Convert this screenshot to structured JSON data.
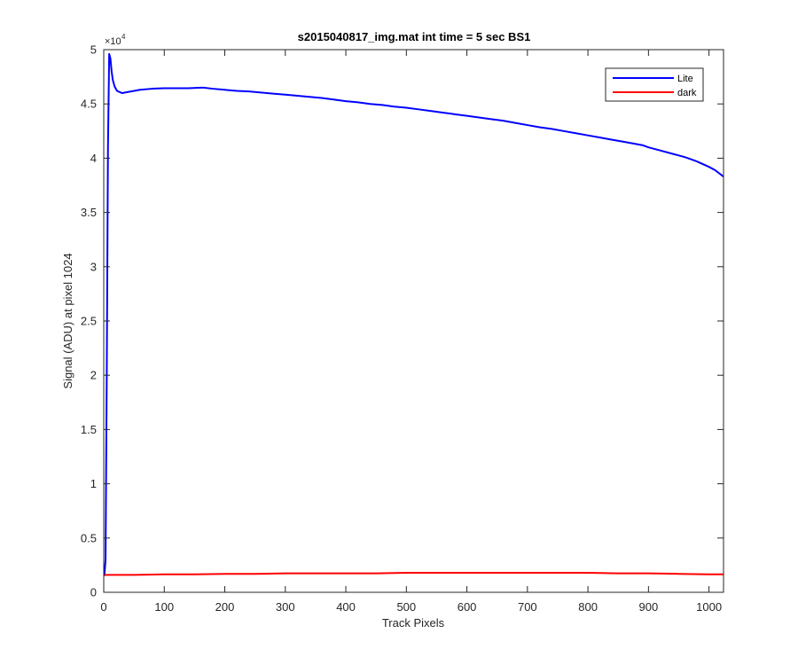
{
  "chart_data": {
    "type": "line",
    "title": "s2015040817_img.mat int time = 5 sec   BS1",
    "xlabel": "Track Pixels",
    "ylabel": "Signal (ADU) at pixel 1024",
    "xlim": [
      0,
      1024
    ],
    "ylim": [
      0,
      50000
    ],
    "y_exponent_base": "×10",
    "y_exponent_power": "4",
    "xticks": [
      0,
      100,
      200,
      300,
      400,
      500,
      600,
      700,
      800,
      900,
      1000
    ],
    "xtick_labels": [
      "0",
      "100",
      "200",
      "300",
      "400",
      "500",
      "600",
      "700",
      "800",
      "900",
      "1000"
    ],
    "yticks": [
      0,
      5000,
      10000,
      15000,
      20000,
      25000,
      30000,
      35000,
      40000,
      45000,
      50000
    ],
    "ytick_labels": [
      "0",
      "0.5",
      "1",
      "1.5",
      "2",
      "2.5",
      "3",
      "3.5",
      "4",
      "4.5",
      "5"
    ],
    "legend_position": "top-right",
    "grid": false,
    "series": [
      {
        "name": "Lite",
        "color": "#0000ff",
        "x": [
          1,
          3,
          5,
          7,
          9,
          11,
          13,
          15,
          18,
          22,
          30,
          40,
          60,
          80,
          100,
          120,
          140,
          160,
          165,
          180,
          200,
          220,
          240,
          260,
          280,
          300,
          320,
          340,
          360,
          380,
          400,
          420,
          440,
          460,
          480,
          500,
          520,
          540,
          560,
          580,
          600,
          620,
          640,
          660,
          680,
          700,
          720,
          740,
          760,
          780,
          800,
          820,
          840,
          860,
          880,
          890,
          900,
          920,
          940,
          960,
          970,
          980,
          1000,
          1010,
          1024
        ],
        "y": [
          1500,
          3000,
          20000,
          41000,
          49600,
          49200,
          48000,
          47200,
          46600,
          46200,
          46000,
          46100,
          46300,
          46400,
          46450,
          46450,
          46450,
          46500,
          46500,
          46400,
          46300,
          46200,
          46150,
          46050,
          45950,
          45850,
          45750,
          45650,
          45550,
          45400,
          45250,
          45150,
          45000,
          44900,
          44750,
          44650,
          44500,
          44350,
          44200,
          44050,
          43900,
          43750,
          43600,
          43450,
          43250,
          43050,
          42850,
          42700,
          42500,
          42300,
          42100,
          41900,
          41700,
          41500,
          41300,
          41200,
          41000,
          40700,
          40400,
          40100,
          39900,
          39700,
          39200,
          38900,
          38300
        ]
      },
      {
        "name": "dark",
        "color": "#ff0000",
        "x": [
          1,
          50,
          100,
          150,
          200,
          250,
          300,
          350,
          400,
          450,
          500,
          550,
          600,
          650,
          700,
          750,
          800,
          850,
          900,
          950,
          1000,
          1024
        ],
        "y": [
          1600,
          1600,
          1650,
          1650,
          1700,
          1700,
          1750,
          1750,
          1750,
          1750,
          1800,
          1800,
          1800,
          1800,
          1800,
          1800,
          1800,
          1750,
          1750,
          1700,
          1650,
          1650
        ]
      }
    ]
  }
}
